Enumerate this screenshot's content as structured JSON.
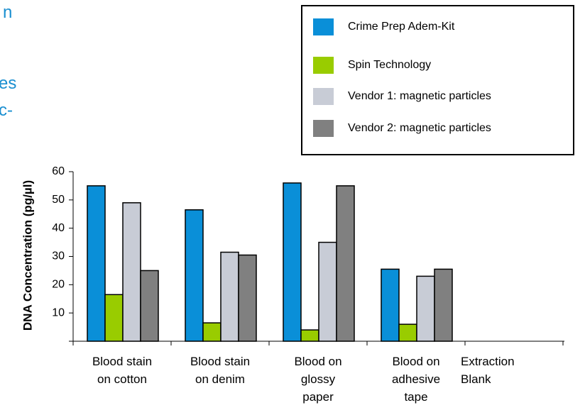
{
  "chart_data": {
    "type": "bar",
    "annotations": [
      "n",
      "es",
      "c-"
    ],
    "y_label": "DNA Concentration (pg/µl)",
    "categories": [
      "Blood  stain\non cotton",
      "Blood stain\non denim",
      "Blood on\nglossy\npaper",
      "Blood on\nadhesive\ntape",
      "Extraction\nBlank"
    ],
    "series": [
      {
        "name": "Crime Prep Adem-Kit",
        "color": "#0a8fd8",
        "values": [
          55,
          46.5,
          56,
          25.5,
          0
        ]
      },
      {
        "name": "Spin Technology",
        "color": "#99cc00",
        "values": [
          16.5,
          6.5,
          4,
          6,
          0
        ]
      },
      {
        "name": "Vendor 1: magnetic particles",
        "color": "#c8ccd6",
        "values": [
          49,
          31.5,
          35,
          23,
          0
        ]
      },
      {
        "name": "Vendor 2: magnetic particles",
        "color": "#808080",
        "values": [
          25,
          30.5,
          55,
          25.5,
          0
        ]
      }
    ],
    "ylim": [
      0,
      60
    ],
    "yticks": [
      10,
      20,
      30,
      40,
      50,
      60
    ],
    "legend": "top-right"
  }
}
